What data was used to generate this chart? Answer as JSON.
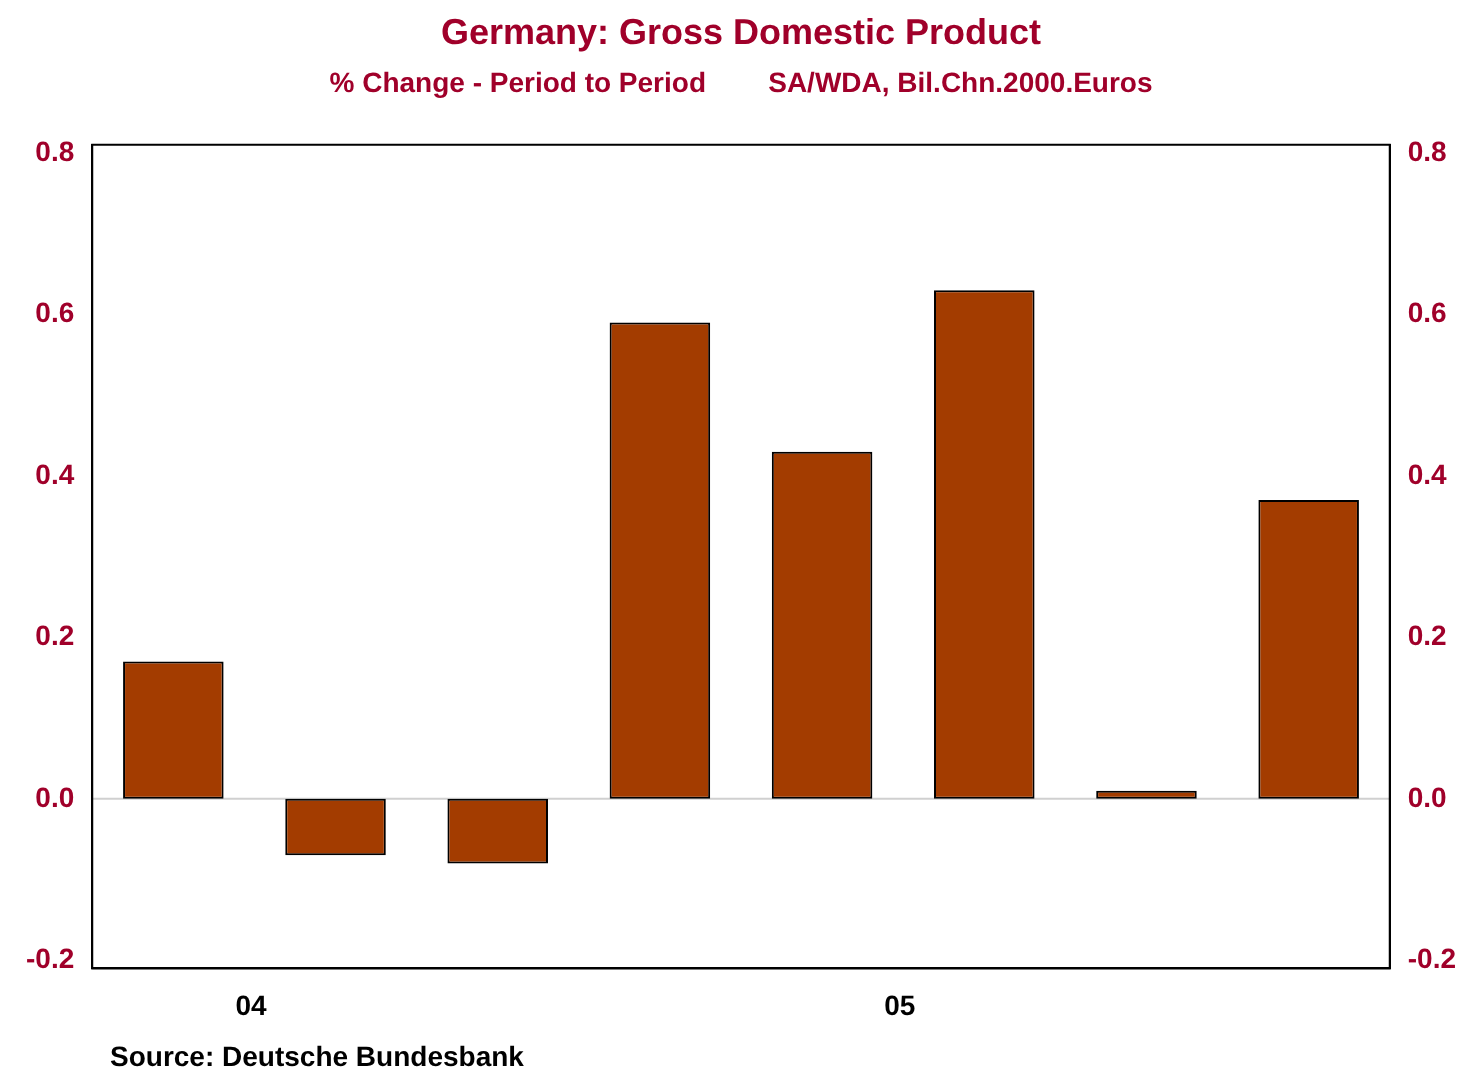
{
  "chart_data": {
    "type": "bar",
    "title": "Germany: Gross Domestic Product",
    "subtitle": "% Change - Period to Period        SA/WDA, Bil.Chn.2000.Euros",
    "categories": [
      "04",
      null,
      null,
      null,
      "05",
      null,
      null,
      null
    ],
    "values": [
      0.17,
      -0.07,
      -0.08,
      0.59,
      0.43,
      0.63,
      0.01,
      0.37
    ],
    "color": "#a33c00",
    "ylim": [
      -0.21,
      0.81
    ],
    "yticks": [
      {
        "value": -0.2,
        "label": "-0.2"
      },
      {
        "value": 0,
        "label": "0.0"
      },
      0.2,
      0.4,
      0.6,
      0.8
    ],
    "y2lim": [
      -0.21,
      0.81
    ],
    "y2ticks": [
      {
        "value": -0.2,
        "label": "-0.2"
      },
      {
        "value": 0,
        "label": "0.0"
      },
      0.2,
      0.4,
      0.6,
      0.8
    ],
    "ref_lines": [
      {
        "axis": "y",
        "value": 0,
        "color": "#d0d0d0"
      }
    ],
    "grid": false,
    "legend": false,
    "annotations": [
      "Source:  Deutsche Bundesbank"
    ]
  }
}
